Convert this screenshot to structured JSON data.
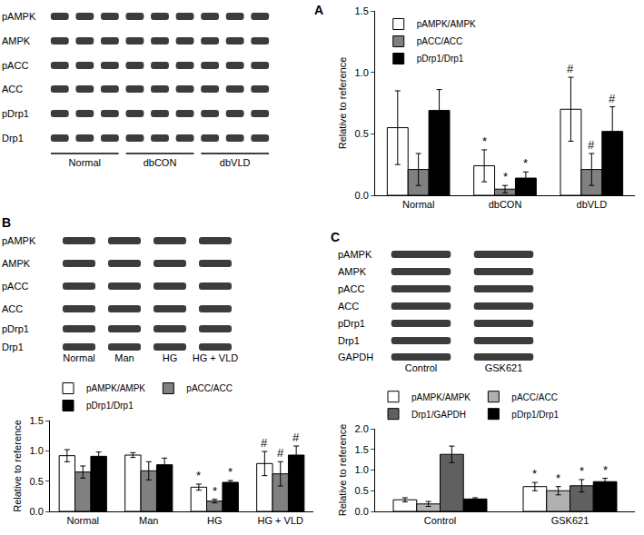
{
  "chart_data": [
    {
      "type": "bar",
      "ylabel": "Relative to reference",
      "categories": [
        "Normal",
        "dbCON",
        "dbVLD"
      ],
      "series": [
        {
          "name": "pAMPK/AMPK",
          "color": "#ffffff",
          "values": [
            0.55,
            0.24,
            0.7
          ],
          "errors": [
            0.3,
            0.13,
            0.26
          ],
          "significance": [
            null,
            "*",
            "#"
          ]
        },
        {
          "name": "pACC/ACC",
          "color": "#808080",
          "values": [
            0.21,
            0.05,
            0.21
          ],
          "errors": [
            0.13,
            0.03,
            0.13
          ],
          "significance": [
            null,
            "*",
            "#"
          ]
        },
        {
          "name": "pDrp1/Drp1",
          "color": "#000000",
          "values": [
            0.69,
            0.14,
            0.52
          ],
          "errors": [
            0.17,
            0.05,
            0.2
          ],
          "significance": [
            null,
            "*",
            "#"
          ]
        }
      ],
      "ylim": [
        0,
        1.5
      ],
      "yticks": [
        {
          "value": 0,
          "label": "0.0"
        },
        0.5,
        {
          "value": 1,
          "label": "1.0"
        },
        1.5
      ],
      "legend": "top left",
      "grid": false
    },
    {
      "type": "bar",
      "ylabel": "Relative to reference",
      "categories": [
        "Normal",
        "Man",
        "HG",
        "HG + VLD"
      ],
      "series": [
        {
          "name": "pAMPK/AMPK",
          "color": "#ffffff",
          "values": [
            0.92,
            0.93,
            0.4,
            0.79
          ],
          "errors": [
            0.1,
            0.04,
            0.05,
            0.2
          ],
          "significance": [
            null,
            null,
            "*",
            "#"
          ]
        },
        {
          "name": "pACC/ACC",
          "color": "#808080",
          "values": [
            0.65,
            0.67,
            0.17,
            0.62
          ],
          "errors": [
            0.1,
            0.15,
            0.03,
            0.2
          ],
          "significance": [
            null,
            null,
            "*",
            "#"
          ]
        },
        {
          "name": "pDrp1/Drp1",
          "color": "#000000",
          "values": [
            0.91,
            0.77,
            0.48,
            0.93
          ],
          "errors": [
            0.07,
            0.11,
            0.03,
            0.15
          ],
          "significance": [
            null,
            null,
            "*",
            "#"
          ]
        }
      ],
      "ylim": [
        0,
        1.5
      ],
      "yticks": [
        {
          "value": 0,
          "label": "0.0"
        },
        0.5,
        {
          "value": 1,
          "label": "1.0"
        },
        1.5
      ],
      "legend": "top",
      "grid": false
    },
    {
      "type": "bar",
      "ylabel": "Relative to reference",
      "categories": [
        "Control",
        "GSK621"
      ],
      "series": [
        {
          "name": "pAMPK/AMPK",
          "color": "#ffffff",
          "values": [
            0.28,
            0.6
          ],
          "errors": [
            0.05,
            0.1
          ],
          "significance": [
            null,
            "*"
          ]
        },
        {
          "name": "pACC/ACC",
          "color": "#b0b0b0",
          "values": [
            0.18,
            0.5
          ],
          "errors": [
            0.06,
            0.1
          ],
          "significance": [
            null,
            "*"
          ]
        },
        {
          "name": "Drp1/GAPDH",
          "color": "#606060",
          "values": [
            1.38,
            0.62
          ],
          "errors": [
            0.2,
            0.15
          ],
          "significance": [
            null,
            "*"
          ]
        },
        {
          "name": "pDrp1/Drp1",
          "color": "#000000",
          "values": [
            0.3,
            0.72
          ],
          "errors": [
            0.03,
            0.08
          ],
          "significance": [
            null,
            "*"
          ]
        }
      ],
      "ylim": [
        0,
        2
      ],
      "yticks": [
        {
          "value": 0,
          "label": "0.0"
        },
        0.5,
        {
          "value": 1,
          "label": "1.0"
        },
        1.5,
        {
          "value": 2,
          "label": "2.0"
        }
      ],
      "legend": "top",
      "grid": false
    }
  ],
  "blots": [
    {
      "panel": "A",
      "rows": [
        "pAMPK",
        "AMPK",
        "pACC",
        "ACC",
        "pDrp1",
        "Drp1"
      ],
      "groups": [
        "Normal",
        "dbCON",
        "dbVLD"
      ],
      "lanes_per_group": 3
    },
    {
      "panel": "B",
      "rows": [
        "pAMPK",
        "AMPK",
        "pACC",
        "ACC",
        "pDrp1",
        "Drp1"
      ],
      "groups": [
        "Normal",
        "Man",
        "HG",
        "HG + VLD"
      ],
      "lanes_per_group": 1
    },
    {
      "panel": "C",
      "rows": [
        "pAMPK",
        "AMPK",
        "pACC",
        "ACC",
        "pDrp1",
        "Drp1",
        "GAPDH"
      ],
      "groups": [
        "Control",
        "GSK621"
      ],
      "lanes_per_group": 1
    }
  ]
}
